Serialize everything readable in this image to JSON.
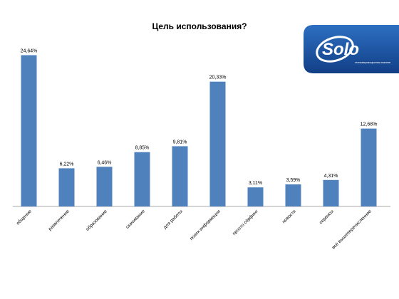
{
  "chart_data": {
    "type": "bar",
    "title": "Цель использования?",
    "categories": [
      "общение",
      "развлечение",
      "образование",
      "скачивание",
      "для работы",
      "поиск информации",
      "просто сёрфинг",
      "новости",
      "сервисы",
      "всё вышеперечисленное"
    ],
    "values": [
      24.64,
      6.22,
      6.46,
      8.85,
      9.81,
      20.33,
      3.11,
      3.59,
      4.31,
      12.68
    ],
    "value_labels": [
      "24,64%",
      "6,22%",
      "6,46%",
      "8,85%",
      "9,81%",
      "20,33%",
      "3,11%",
      "3,59%",
      "4,31%",
      "12,68%"
    ],
    "xlabel": "",
    "ylabel": "",
    "ylim": [
      0,
      25
    ],
    "grid": false,
    "legend": "none",
    "bar_color": "#4f81bd"
  },
  "logo": {
    "text": "Solo",
    "tagline": "телекоммуникационная компания",
    "bg_color": "#1a56a8",
    "icon_name": "solo-logo"
  }
}
